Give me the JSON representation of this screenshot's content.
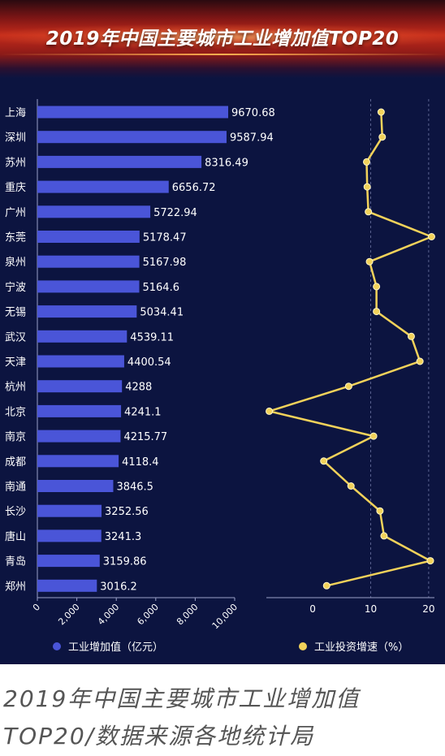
{
  "banner": {
    "title": "2019年中国主要城市工业增加值TOP20"
  },
  "caption": {
    "line1": "2019年中国主要城市工业增加值",
    "line2": "TOP20/数据来源各地统计局"
  },
  "colors": {
    "bar": "#4a55d8",
    "line": "#f2d25a",
    "background": "#0c1440",
    "text": "#ffffff"
  },
  "chart_data": [
    {
      "type": "bar",
      "orientation": "horizontal",
      "categories": [
        "上海",
        "深圳",
        "苏州",
        "重庆",
        "广州",
        "东莞",
        "泉州",
        "宁波",
        "无锡",
        "武汉",
        "天津",
        "杭州",
        "北京",
        "南京",
        "成都",
        "南通",
        "长沙",
        "唐山",
        "青岛",
        "郑州"
      ],
      "values": [
        9670.68,
        9587.94,
        8316.49,
        6656.72,
        5722.94,
        5178.47,
        5167.98,
        5164.6,
        5034.41,
        4539.11,
        4400.54,
        4288,
        4241.1,
        4215.77,
        4118.4,
        3846.5,
        3252.56,
        3241.3,
        3159.86,
        3016.2
      ],
      "value_labels": [
        "9670.68",
        "9587.94",
        "8316.49",
        "6656.72",
        "5722.94",
        "5178.47",
        "5167.98",
        "5164.6",
        "5034.41",
        "4539.11",
        "4400.54",
        "4288",
        "4241.1",
        "4215.77",
        "4118.4",
        "3846.5",
        "3252.56",
        "3241.3",
        "3159.86",
        "3016.2"
      ],
      "xlim": [
        0,
        10000
      ],
      "xticks": [
        "0",
        "2,000",
        "4,000",
        "6,000",
        "8,000",
        "10,000"
      ],
      "series_name": "工业增加值（亿元）"
    },
    {
      "type": "line",
      "categories": [
        "上海",
        "深圳",
        "苏州",
        "重庆",
        "广州",
        "东莞",
        "泉州",
        "宁波",
        "无锡",
        "武汉",
        "天津",
        "杭州",
        "北京",
        "南京",
        "成都",
        "南通",
        "长沙",
        "唐山",
        "青岛",
        "郑州"
      ],
      "values": [
        11.8,
        12.0,
        9.3,
        9.4,
        9.6,
        20.5,
        9.8,
        11.0,
        11.0,
        17.0,
        18.5,
        6.2,
        -7.5,
        10.5,
        1.9,
        6.6,
        11.6,
        12.3,
        20.3,
        2.4
      ],
      "xlim": [
        -8,
        21
      ],
      "xticks": [
        "0",
        "10",
        "20"
      ],
      "grid": "dashed vertical at 10 and 20",
      "series_name": "工业投资增速（%）"
    }
  ]
}
